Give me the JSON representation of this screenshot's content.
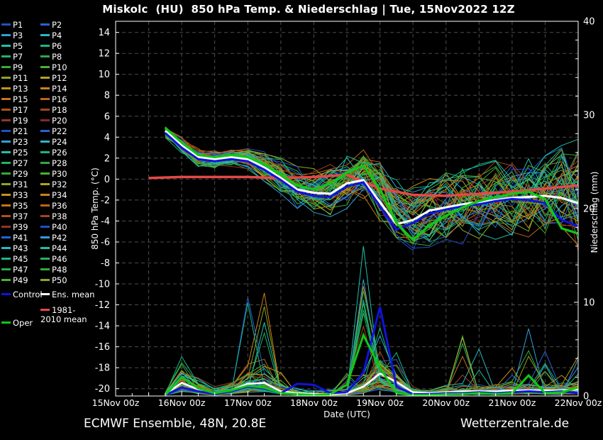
{
  "title": "Miskolc  (HU)  850 hPa Temp. & Niederschlag | Tue, 15Nov2022 12Z",
  "footer": {
    "left": "ECMWF Ensemble, 48N, 20.8E",
    "right": "Wetterzentrale.de"
  },
  "chart_data": {
    "type": "line",
    "title": "Miskolc  (HU)  850 hPa Temp. & Niederschlag | Tue, 15Nov2022 12Z",
    "x_axis": {
      "label": "Date (UTC)",
      "tick_labels": [
        "15Nov 00z",
        "16Nov 00z",
        "17Nov 00z",
        "18Nov 00z",
        "19Nov 00z",
        "20Nov 00z",
        "21Nov 00z",
        "22Nov 00z"
      ],
      "range_days": [
        0,
        7
      ],
      "gridline_every_hours": 12,
      "minor_tick_hours": 6
    },
    "y_left": {
      "label": "850 hPa Temp. (°C)",
      "ticks": [
        14,
        12,
        10,
        8,
        6,
        4,
        2,
        0,
        -2,
        -4,
        -6,
        -8,
        -10,
        -12,
        -14,
        -16,
        -18,
        -20
      ],
      "range": [
        -20.7,
        15.06
      ],
      "grid": "dashed"
    },
    "y_right": {
      "label": "Niederschlag (mm)",
      "ticks": [
        40,
        30,
        20,
        10,
        0
      ],
      "minor_step_mm": 2,
      "range": [
        0,
        40
      ]
    },
    "time_days": [
      0.75,
      1,
      1.25,
      1.5,
      1.75,
      2,
      2.25,
      2.5,
      2.75,
      3,
      3.25,
      3.5,
      3.75,
      4,
      4.25,
      4.5,
      4.75,
      5,
      5.25,
      5.5,
      5.75,
      6,
      6.25,
      6.5,
      6.75,
      7
    ],
    "series": [
      {
        "name": "Ens. mean",
        "role": "ens_mean_temp",
        "unit": "degC",
        "color": "#ffffff",
        "values": [
          4.6,
          3.2,
          2.1,
          1.9,
          2.1,
          1.9,
          1.1,
          0.1,
          -1.0,
          -1.3,
          -1.4,
          -0.4,
          -0.1,
          -2.2,
          -4.3,
          -3.9,
          -3.0,
          -2.7,
          -2.4,
          -2.2,
          -2.0,
          -1.8,
          -1.7,
          -1.6,
          -1.8,
          -2.3
        ]
      },
      {
        "name": "Control",
        "role": "control_temp",
        "unit": "degC",
        "color": "#1212dd",
        "values": [
          4.4,
          3.0,
          1.9,
          1.7,
          1.9,
          1.7,
          0.9,
          -0.1,
          -1.2,
          -1.6,
          -1.7,
          -0.7,
          -0.3,
          -2.6,
          -4.8,
          -4.2,
          -3.3,
          -2.9,
          -2.6,
          -2.4,
          -2.1,
          -1.9,
          -2.0,
          -2.3,
          -3.9,
          -4.5
        ]
      },
      {
        "name": "Oper",
        "role": "oper_temp",
        "unit": "degC",
        "color": "#10c814",
        "values": [
          4.9,
          3.5,
          2.3,
          2.1,
          2.3,
          2.1,
          1.4,
          0.4,
          -0.6,
          -1.0,
          -0.4,
          0.6,
          1.3,
          -1.0,
          -4.2,
          -5.8,
          -4.4,
          -3.5,
          -2.7,
          -2.1,
          -1.7,
          -1.4,
          -1.2,
          -1.9,
          -4.7,
          -5.2
        ]
      },
      {
        "name": "1981-2010 mean",
        "role": "climate_mean_temp",
        "unit": "degC",
        "color": "#e64848",
        "time_days": [
          0.5,
          1,
          1.5,
          2,
          2.5,
          3,
          3.5,
          4,
          4.5,
          5,
          5.5,
          6,
          6.5,
          7
        ],
        "values": [
          0.1,
          0.2,
          0.2,
          0.2,
          0.1,
          0.2,
          0.4,
          -0.9,
          -1.5,
          -1.6,
          -1.4,
          -1.2,
          -0.9,
          -0.6
        ]
      },
      {
        "name": "Ens. mean",
        "role": "ens_mean_precip",
        "unit": "mm",
        "color": "#ffffff",
        "values": [
          0.2,
          1.4,
          0.7,
          0.3,
          0.6,
          1.3,
          1.4,
          0.5,
          0.3,
          0.2,
          0.2,
          0.3,
          1.0,
          2.4,
          1.5,
          0.4,
          0.3,
          0.4,
          0.5,
          0.5,
          0.5,
          0.6,
          0.6,
          0.6,
          0.6,
          0.7
        ]
      },
      {
        "name": "Control",
        "role": "control_precip",
        "unit": "mm",
        "color": "#1212dd",
        "values": [
          0.1,
          0.9,
          0.5,
          0.2,
          0.5,
          1.0,
          0.8,
          0.3,
          1.3,
          1.2,
          0.3,
          0.4,
          2.5,
          9.5,
          1.0,
          0.2,
          0.2,
          0.3,
          0.3,
          0.4,
          0.3,
          0.4,
          0.5,
          0.4,
          0.5,
          0.3
        ]
      },
      {
        "name": "Oper",
        "role": "oper_precip",
        "unit": "mm",
        "color": "#10c814",
        "values": [
          0.1,
          2.0,
          0.8,
          0.3,
          0.6,
          1.1,
          0.9,
          0.3,
          0.2,
          0.1,
          0.2,
          1.2,
          6.5,
          3.0,
          0.3,
          0.1,
          0.1,
          0.2,
          0.2,
          0.3,
          0.2,
          0.3,
          2.2,
          0.3,
          0.4,
          0.9
        ]
      }
    ],
    "ensemble": {
      "member_labels": [
        "P1",
        "P2",
        "P3",
        "P4",
        "P5",
        "P6",
        "P7",
        "P8",
        "P9",
        "P10",
        "P11",
        "P12",
        "P13",
        "P14",
        "P15",
        "P16",
        "P17",
        "P18",
        "P19",
        "P20",
        "P21",
        "P22",
        "P23",
        "P24",
        "P25",
        "P26",
        "P27",
        "P28",
        "P29",
        "P30",
        "P31",
        "P32",
        "P33",
        "P34",
        "P35",
        "P36",
        "P37",
        "P38",
        "P39",
        "P40",
        "P41",
        "P42",
        "P43",
        "P44",
        "P45",
        "P46",
        "P47",
        "P48",
        "P49",
        "P50"
      ],
      "palette": [
        "#2050c8",
        "#2862d2",
        "#30a0dc",
        "#28b8c8",
        "#20c0a8",
        "#18b888",
        "#20b468",
        "#28ac48",
        "#34ac34",
        "#48b42c",
        "#90a424",
        "#b4a41c",
        "#c49418",
        "#c88418",
        "#c87418",
        "#c06418",
        "#b45018",
        "#a44420",
        "#963424",
        "#862828"
      ],
      "temp_envelope_min": [
        3.8,
        2.4,
        1.2,
        1.0,
        1.2,
        0.8,
        -0.2,
        -1.4,
        -2.8,
        -3.4,
        -3.6,
        -2.8,
        -2.4,
        -4.0,
        -6.2,
        -6.8,
        -6.5,
        -6.3,
        -6.2,
        -6.0,
        -6.0,
        -5.8,
        -5.6,
        -5.5,
        -6.0,
        -7.0
      ],
      "temp_envelope_max": [
        5.2,
        4.1,
        3.0,
        2.8,
        3.0,
        3.0,
        2.6,
        2.0,
        1.2,
        1.0,
        1.4,
        2.2,
        3.0,
        2.2,
        0.4,
        -0.2,
        0.2,
        0.6,
        1.0,
        1.4,
        1.8,
        2.2,
        2.6,
        3.0,
        3.6,
        4.2
      ],
      "precip_envelope_max": [
        0.6,
        4.5,
        2.5,
        1.0,
        2.0,
        10.5,
        11.0,
        3.0,
        2.0,
        1.5,
        1.0,
        3.0,
        16.0,
        12.0,
        6.0,
        1.5,
        1.5,
        2.0,
        7.0,
        6.5,
        2.5,
        3.5,
        7.2,
        6.3,
        3.0,
        4.5
      ]
    },
    "legend_special": [
      {
        "id": "control",
        "label": "Control",
        "color": "#1212dd"
      },
      {
        "id": "ens-mean",
        "label": "Ens. mean",
        "color": "#ffffff"
      },
      {
        "id": "climate-mean",
        "label": "1981-2010 mean",
        "color": "#e64848"
      },
      {
        "id": "oper",
        "label": "Oper",
        "color": "#10c814"
      }
    ],
    "style": {
      "background": "#000000",
      "frame_color": "#ffffff",
      "grid_color": "#4d4d44",
      "text_color": "#ffffff"
    }
  }
}
